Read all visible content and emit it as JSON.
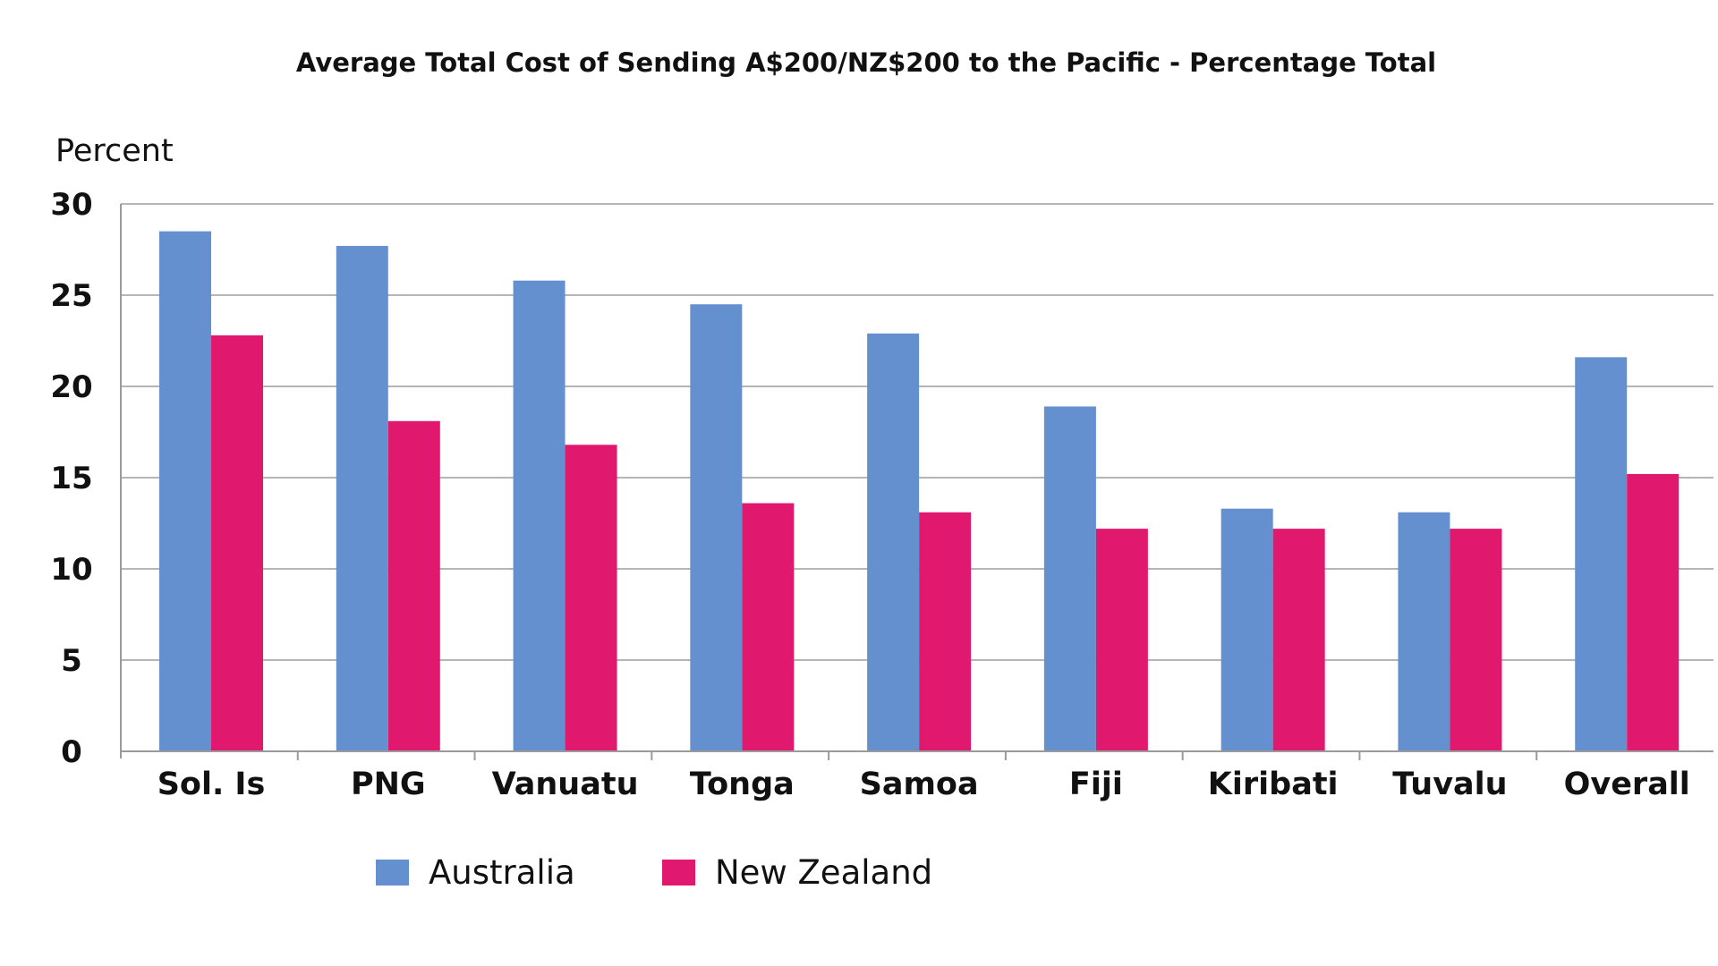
{
  "chart_data": {
    "type": "bar",
    "title": "Average Total Cost of Sending A$200/NZ$200 to the Pacific - Percentage Total",
    "ylabel": "Percent",
    "xlabel": "",
    "ylim": [
      0,
      30
    ],
    "yticks": [
      0,
      5,
      10,
      15,
      20,
      25,
      30
    ],
    "grid": true,
    "legend_position": "bottom",
    "categories": [
      "Sol. Is",
      "PNG",
      "Vanuatu",
      "Tonga",
      "Samoa",
      "Fiji",
      "Kiribati",
      "Tuvalu",
      "Overall"
    ],
    "series": [
      {
        "name": "Australia",
        "color": "#6590D0",
        "values": [
          28.5,
          27.7,
          25.8,
          24.5,
          22.9,
          18.9,
          13.3,
          13.1,
          21.6
        ]
      },
      {
        "name": "New Zealand",
        "color": "#E0196F",
        "values": [
          22.8,
          18.1,
          16.8,
          13.6,
          13.1,
          12.2,
          12.2,
          12.2,
          15.2
        ]
      }
    ]
  }
}
